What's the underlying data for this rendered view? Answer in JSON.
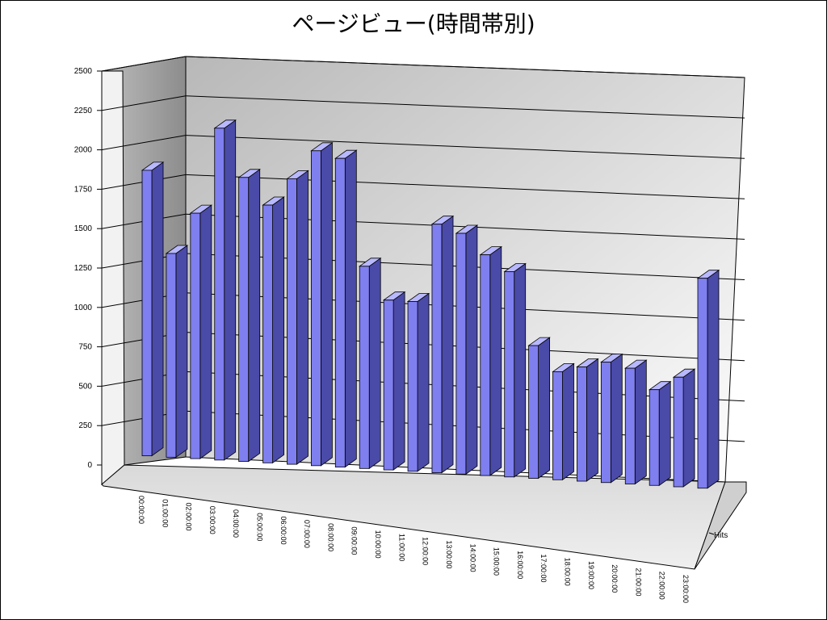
{
  "chart_data": {
    "type": "bar",
    "title": "ページビュー(時間帯別)",
    "categories": [
      "00:00:00",
      "01:00:00",
      "02:00:00",
      "03:00:00",
      "04:00:00",
      "05:00:00",
      "06:00:00",
      "07:00:00",
      "08:00:00",
      "09:00:00",
      "10:00:00",
      "11:00:00",
      "12:00:00",
      "13:00:00",
      "14:00:00",
      "15:00:00",
      "16:00:00",
      "17:00:00",
      "18:00:00",
      "19:00:00",
      "20:00:00",
      "21:00:00",
      "22:00:00",
      "23:00:00"
    ],
    "series": [
      {
        "name": "Hits",
        "values": [
          1850,
          1320,
          1590,
          2150,
          1840,
          1670,
          1850,
          2040,
          2000,
          1310,
          1100,
          1100,
          1610,
          1560,
          1430,
          1330,
          860,
          700,
          740,
          780,
          750,
          620,
          710,
          1360
        ]
      }
    ],
    "y_ticks": [
      "0",
      "250",
      "500",
      "750",
      "1000",
      "1250",
      "1500",
      "1750",
      "2000",
      "2250",
      "2500"
    ],
    "ylim": [
      0,
      2500
    ],
    "grid": true,
    "colors": {
      "bar_front": "#7f7ff0",
      "bar_side": "#4a4aa8",
      "bar_top": "#b8b8ff"
    }
  }
}
